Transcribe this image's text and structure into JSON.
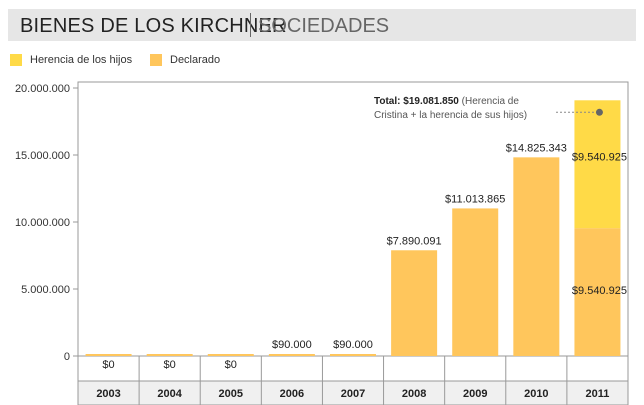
{
  "header": {
    "title": "BIENES DE LOS KIRCHNER",
    "subtitle": "SOCIEDADES"
  },
  "colors": {
    "herencia": "#ffda47",
    "declarado": "#ffc65c",
    "axis": "#999999",
    "grid": "#cccccc",
    "background": "#ffffff"
  },
  "chart_data": {
    "type": "bar",
    "stacked": true,
    "categories": [
      "2003",
      "2004",
      "2005",
      "2006",
      "2007",
      "2008",
      "2009",
      "2010",
      "2011"
    ],
    "series": [
      {
        "name": "Declarado",
        "values": [
          0,
          0,
          0,
          90000,
          90000,
          7890091,
          11013865,
          14825343,
          9540925
        ],
        "labels": [
          "$0",
          "$0",
          "$0",
          "$90.000",
          "$90.000",
          "$7.890.091",
          "$11.013.865",
          "$14.825.343",
          "$9.540.925"
        ]
      },
      {
        "name": "Herencia de los hijos",
        "values": [
          0,
          0,
          0,
          0,
          0,
          0,
          0,
          0,
          9540925
        ],
        "labels": [
          "",
          "",
          "",
          "",
          "",
          "",
          "",
          "",
          "$9.540.925"
        ]
      }
    ],
    "legend_order": [
      "Herencia de los hijos",
      "Declarado"
    ],
    "legend_position": "top-left",
    "yticks": [
      0,
      5000000,
      10000000,
      15000000,
      20000000
    ],
    "ytick_labels": [
      "0",
      "5.000.000",
      "10.000.000",
      "15.000.000",
      "20.000.000"
    ],
    "ylim": [
      0,
      20000000
    ],
    "grid": false,
    "annotation": {
      "category": "2011",
      "bold_text": "Total: $19.081.850",
      "text_line1": "(Herencia de",
      "text_line2": "Cristina + la herencia de sus hijos)"
    }
  }
}
